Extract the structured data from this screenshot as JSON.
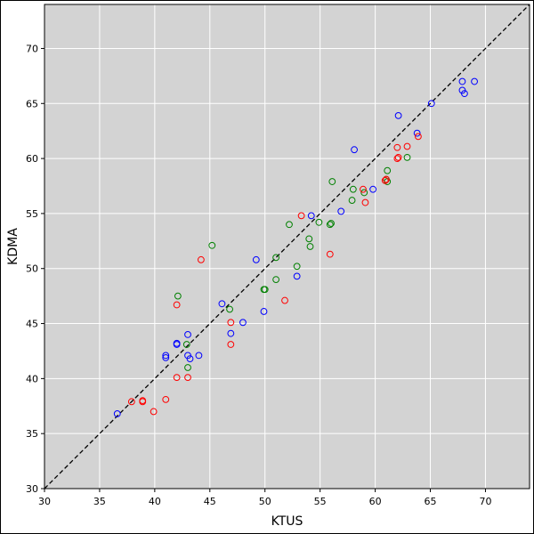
{
  "chart_data": {
    "type": "scatter",
    "title": "",
    "xlabel": "KTUS",
    "ylabel": "KDMA",
    "xlim": [
      30,
      74
    ],
    "ylim": [
      30,
      74
    ],
    "xticks": [
      30,
      35,
      40,
      45,
      50,
      55,
      60,
      65,
      70
    ],
    "yticks": [
      30,
      35,
      40,
      45,
      50,
      55,
      60,
      65,
      70
    ],
    "grid": true,
    "legend": "none",
    "marker": "hollow-circle",
    "reference_line": {
      "style": "dashed",
      "color": "#000000",
      "points": [
        [
          30,
          30
        ],
        [
          74,
          74
        ]
      ]
    },
    "colors": {
      "background": "#d3d3d3",
      "grid": "#ffffff",
      "series_blue": "#0000ff",
      "series_green": "#008000",
      "series_red": "#ff0000"
    },
    "series": [
      {
        "color": "#0000ff",
        "points": [
          [
            36.6,
            36.8
          ],
          [
            41,
            41.9
          ],
          [
            41,
            42.1
          ],
          [
            42,
            43.1
          ],
          [
            42,
            43.2
          ],
          [
            43,
            44
          ],
          [
            43,
            42.1
          ],
          [
            43.2,
            41.8
          ],
          [
            44,
            42.1
          ],
          [
            46.1,
            46.8
          ],
          [
            46.9,
            44.1
          ],
          [
            48,
            45.1
          ],
          [
            49.2,
            50.8
          ],
          [
            49.9,
            46.1
          ],
          [
            52.9,
            49.3
          ],
          [
            54.2,
            54.8
          ],
          [
            56.9,
            55.2
          ],
          [
            58.1,
            60.8
          ],
          [
            59.8,
            57.2
          ],
          [
            62.1,
            63.9
          ],
          [
            63.8,
            62.3
          ],
          [
            65.1,
            65
          ],
          [
            67.9,
            67
          ],
          [
            67.9,
            66.2
          ],
          [
            68.1,
            65.9
          ],
          [
            69,
            67
          ]
        ]
      },
      {
        "color": "#008000",
        "points": [
          [
            42.1,
            47.5
          ],
          [
            42.9,
            43.1
          ],
          [
            43,
            41
          ],
          [
            45.2,
            52.1
          ],
          [
            46.8,
            46.3
          ],
          [
            49.9,
            48.1
          ],
          [
            50,
            48.1
          ],
          [
            51,
            51
          ],
          [
            51,
            49
          ],
          [
            52.2,
            54
          ],
          [
            52.9,
            50.2
          ],
          [
            54,
            52.7
          ],
          [
            54.1,
            52
          ],
          [
            54.9,
            54.2
          ],
          [
            55.9,
            54
          ],
          [
            56,
            54.1
          ],
          [
            56.1,
            57.9
          ],
          [
            57.9,
            56.2
          ],
          [
            58,
            57.2
          ],
          [
            59,
            56.9
          ],
          [
            61,
            58.1
          ],
          [
            61.1,
            57.9
          ],
          [
            61.1,
            58.9
          ],
          [
            62.9,
            60.1
          ]
        ]
      },
      {
        "color": "#ff0000",
        "points": [
          [
            37.9,
            37.9
          ],
          [
            38.9,
            37.9
          ],
          [
            38.9,
            38
          ],
          [
            39.9,
            37
          ],
          [
            41,
            38.1
          ],
          [
            42,
            40.1
          ],
          [
            42,
            46.7
          ],
          [
            43,
            40.1
          ],
          [
            44.2,
            50.8
          ],
          [
            46.9,
            43.1
          ],
          [
            46.9,
            45.1
          ],
          [
            51.8,
            47.1
          ],
          [
            53.3,
            54.8
          ],
          [
            55.9,
            51.3
          ],
          [
            58.9,
            57.2
          ],
          [
            59.1,
            56
          ],
          [
            60.9,
            58
          ],
          [
            61,
            58.1
          ],
          [
            62,
            61
          ],
          [
            62,
            60
          ],
          [
            62.1,
            60.1
          ],
          [
            62.9,
            61.1
          ],
          [
            63.9,
            62
          ]
        ]
      }
    ]
  }
}
